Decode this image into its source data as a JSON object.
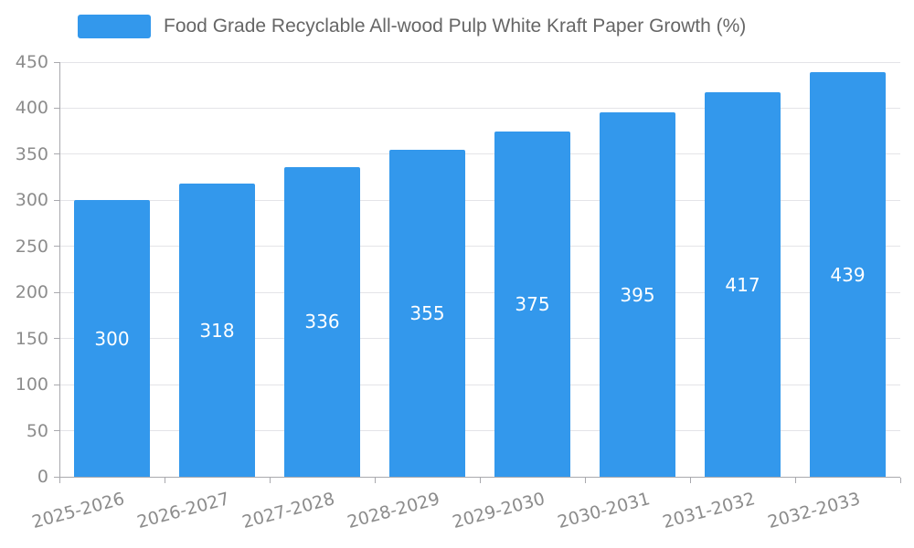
{
  "chart_data": {
    "type": "bar",
    "title": "Food Grade Recyclable All-wood Pulp White Kraft Paper Growth (%)",
    "categories": [
      "2025-2026",
      "2026-2027",
      "2027-2028",
      "2028-2029",
      "2029-2030",
      "2030-2031",
      "2031-2032",
      "2032-2033"
    ],
    "values": [
      300,
      318,
      336,
      355,
      375,
      395,
      417,
      439
    ],
    "xlabel": "",
    "ylabel": "",
    "ylim": [
      0,
      450
    ],
    "ytick_step": 50,
    "grid": true,
    "legend_position": "top-left",
    "bar_color": "#3398ec",
    "value_label_color": "#ffffff",
    "axis_text_color": "#8c8c8c"
  }
}
